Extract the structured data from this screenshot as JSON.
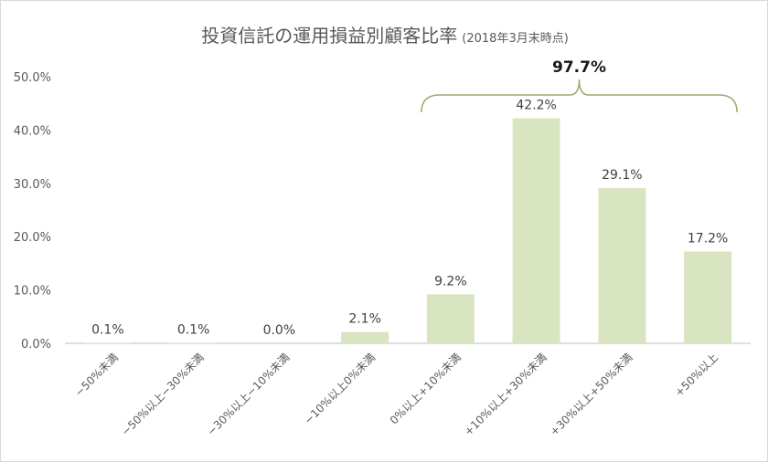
{
  "chart_data": {
    "type": "bar",
    "title": "投資信託の運用損益別顧客比率",
    "subtitle": "(2018年3月末時点)",
    "xlabel": "",
    "ylabel": "",
    "categories": [
      "−50%未満",
      "−50%以上−30%未満",
      "−30%以上−10%未満",
      "−10%以上0%未満",
      "0%以上+10%未満",
      "+10%以上+30%未満",
      "+30%以上+50%未満",
      "+50%以上"
    ],
    "values": [
      0.1,
      0.1,
      0.0,
      2.1,
      9.2,
      42.2,
      29.1,
      17.2
    ],
    "value_labels": [
      "0.1%",
      "0.1%",
      "0.0%",
      "2.1%",
      "9.2%",
      "42.2%",
      "29.1%",
      "17.2%"
    ],
    "yticks": [
      "0.0%",
      "10.0%",
      "20.0%",
      "30.0%",
      "40.0%",
      "50.0%"
    ],
    "ylim": [
      0,
      50
    ],
    "grid": false,
    "bar_color": "#d9e4c0",
    "bracket_color": "#9aaa6e",
    "annotation": {
      "text": "97.7%",
      "from_category": 4,
      "to_category": 7
    }
  }
}
